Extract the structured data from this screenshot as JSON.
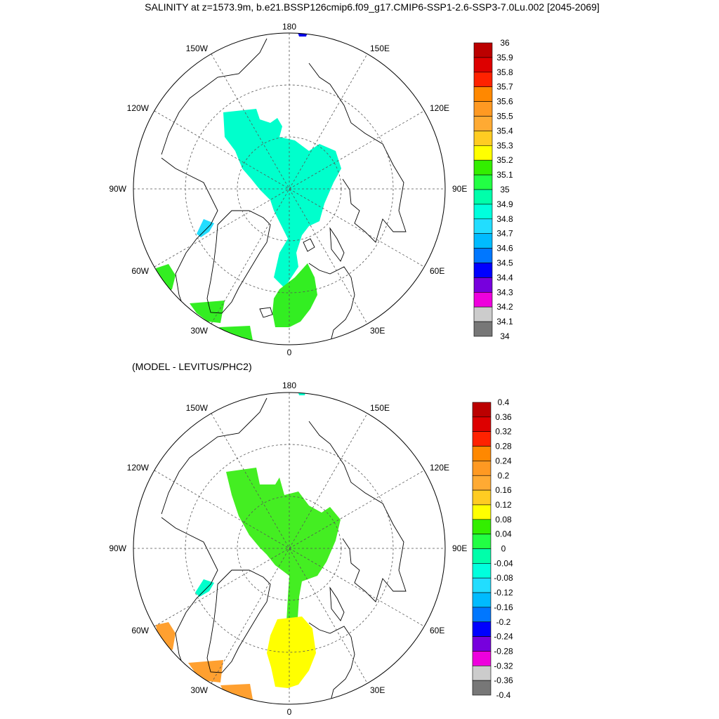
{
  "title": "SALINITY at z=1573.9m, b.e21.BSSP126cmip6.f09_g17.CMIP6-SSP1-2.6-SSP3-7.0Lu.002 [2045-2069]",
  "diff_title": "(MODEL - LEVITUS/PHC2)",
  "longitude_labels": {
    "top": "180",
    "bottom": "0",
    "left": "90W",
    "right": "90E",
    "upper_left_1": "150W",
    "upper_left_2": "120W",
    "upper_right_1": "150E",
    "upper_right_2": "120E",
    "lower_left_1": "60W",
    "lower_left_2": "30W",
    "lower_right_1": "60E",
    "lower_right_2": "30E"
  },
  "colors": {
    "fill_cyan": "#00ffcc",
    "fill_green": "#33ff00",
    "fill_lightgreen": "#44ee22",
    "fill_yellow": "#ffff00",
    "fill_orange": "#ffa030",
    "fill_lightblue": "#22ddff",
    "fill_blue": "#0000ee"
  },
  "colorbar_top": {
    "labels": [
      "36",
      "35.9",
      "35.8",
      "35.7",
      "35.6",
      "35.5",
      "35.4",
      "35.3",
      "35.2",
      "35.1",
      "35",
      "34.9",
      "34.8",
      "34.7",
      "34.6",
      "34.5",
      "34.4",
      "34.3",
      "34.2",
      "34.1",
      "34"
    ],
    "colors": [
      "#bb0000",
      "#dd0000",
      "#ff2200",
      "#ff8800",
      "#ff9922",
      "#ffaa33",
      "#ffcc22",
      "#ffff00",
      "#33ee00",
      "#22ff44",
      "#00ffaa",
      "#00ffdd",
      "#22ddff",
      "#00bbff",
      "#0077ff",
      "#0000ff",
      "#7700dd",
      "#ee00dd",
      "#cccccc",
      "#777777"
    ]
  },
  "colorbar_bottom": {
    "labels": [
      "0.4",
      "0.36",
      "0.32",
      "0.28",
      "0.24",
      "0.2",
      "0.16",
      "0.12",
      "0.08",
      "0.04",
      "0",
      "-0.04",
      "-0.08",
      "-0.12",
      "-0.16",
      "-0.2",
      "-0.24",
      "-0.28",
      "-0.32",
      "-0.36",
      "-0.4"
    ],
    "colors": [
      "#bb0000",
      "#dd0000",
      "#ff2200",
      "#ff8800",
      "#ff9922",
      "#ffaa33",
      "#ffcc22",
      "#ffff00",
      "#33ee00",
      "#22ff44",
      "#00ffaa",
      "#00ffdd",
      "#22ddff",
      "#00bbff",
      "#0077ff",
      "#0000ff",
      "#7700dd",
      "#ee00dd",
      "#cccccc",
      "#777777"
    ]
  }
}
